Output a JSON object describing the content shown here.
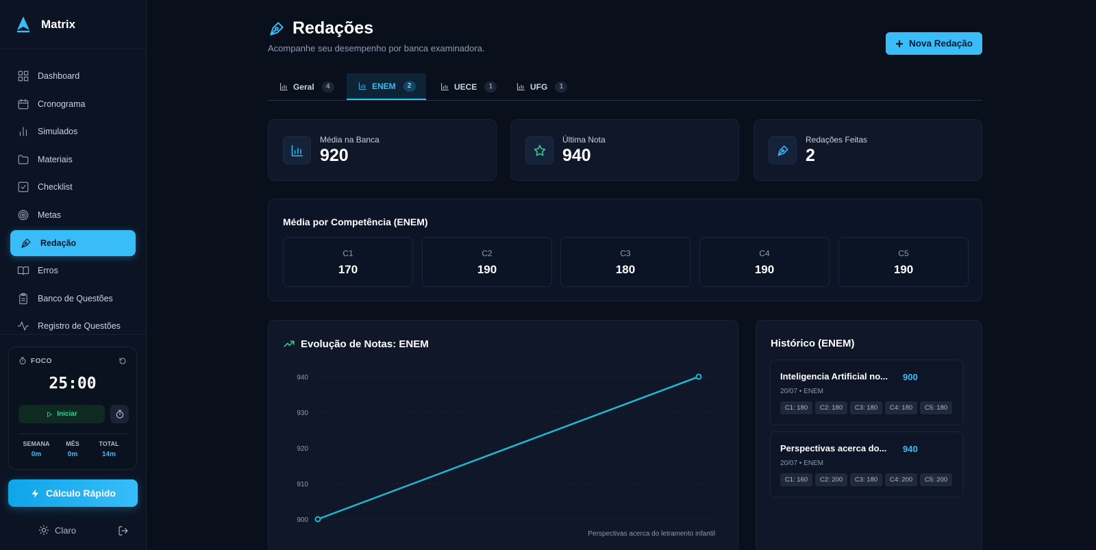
{
  "app": {
    "name": "Matrix"
  },
  "sidebar": {
    "items": [
      {
        "label": "Dashboard",
        "icon": "dashboard-icon"
      },
      {
        "label": "Cronograma",
        "icon": "calendar-icon"
      },
      {
        "label": "Simulados",
        "icon": "bar-chart-icon"
      },
      {
        "label": "Materiais",
        "icon": "folder-icon"
      },
      {
        "label": "Checklist",
        "icon": "checklist-icon"
      },
      {
        "label": "Metas",
        "icon": "target-icon"
      },
      {
        "label": "Redação",
        "icon": "pen-icon",
        "active": true
      },
      {
        "label": "Erros",
        "icon": "book-icon"
      },
      {
        "label": "Banco de Questões",
        "icon": "clipboard-icon"
      },
      {
        "label": "Registro de Questões",
        "icon": "activity-icon"
      }
    ]
  },
  "focus": {
    "title": "FOCO",
    "time": "25:00",
    "start_label": "Iniciar",
    "stats": [
      {
        "label": "SEMANA",
        "value": "0m"
      },
      {
        "label": "MÊS",
        "value": "0m"
      },
      {
        "label": "TOTAL",
        "value": "14m"
      }
    ]
  },
  "quick_calc": {
    "label": "Cálculo Rápido"
  },
  "theme": {
    "label": "Claro"
  },
  "page": {
    "title": "Redações",
    "subtitle": "Acompanhe seu desempenho por banca examinadora.",
    "new_button": "Nova Redação"
  },
  "tabs": [
    {
      "label": "Geral",
      "count": "4"
    },
    {
      "label": "ENEM",
      "count": "2",
      "active": true
    },
    {
      "label": "UECE",
      "count": "1"
    },
    {
      "label": "UFG",
      "count": "1"
    }
  ],
  "kpis": [
    {
      "label": "Média na Banca",
      "value": "920",
      "icon": "bar-chart-icon",
      "color": "#38bdf8"
    },
    {
      "label": "Última Nota",
      "value": "940",
      "icon": "star-icon",
      "color": "#34d399"
    },
    {
      "label": "Redações Feitas",
      "value": "2",
      "icon": "pen-icon",
      "color": "#38bdf8"
    }
  ],
  "competencias": {
    "title": "Média por Competência (ENEM)",
    "items": [
      {
        "label": "C1",
        "value": "170"
      },
      {
        "label": "C2",
        "value": "190"
      },
      {
        "label": "C3",
        "value": "180"
      },
      {
        "label": "C4",
        "value": "190"
      },
      {
        "label": "C5",
        "value": "190"
      }
    ]
  },
  "evolution": {
    "title": "Evolução de Notas: ENEM"
  },
  "chart_data": {
    "type": "line",
    "x": [
      "Inteligencia Artificial no...",
      "Perspectivas acerca do letramento infantil"
    ],
    "series": [
      {
        "values": [
          900,
          940
        ]
      }
    ],
    "yticks": [
      "940",
      "930",
      "920",
      "910",
      "900"
    ],
    "ylim": [
      900,
      940
    ],
    "visible_x_label": "Perspectivas acerca do letramento infantil",
    "color": "#22b8cf",
    "grid": true
  },
  "history": {
    "title": "Histórico (ENEM)",
    "items": [
      {
        "title": "Inteligencia Artificial no...",
        "score": "900",
        "meta": "20/07 • ENEM",
        "tags": [
          "C1: 180",
          "C2: 180",
          "C3: 180",
          "C4: 180",
          "C5: 180"
        ]
      },
      {
        "title": "Perspectivas acerca do...",
        "score": "940",
        "meta": "20/07 • ENEM",
        "tags": [
          "C1: 160",
          "C2: 200",
          "C3: 180",
          "C4: 200",
          "C5: 200"
        ]
      }
    ]
  },
  "colors": {
    "accent": "#38bdf8",
    "success": "#34d399",
    "background": "#0a0f1c"
  }
}
